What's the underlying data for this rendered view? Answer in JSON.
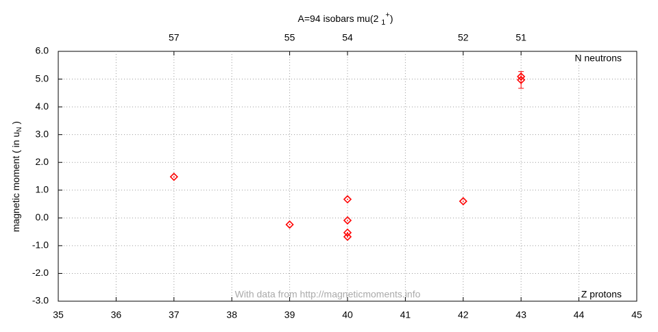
{
  "chart_data": {
    "type": "scatter",
    "title_parts": [
      "A=94 isobars mu(2 ",
      "1",
      "+",
      ")"
    ],
    "y_label_parts": [
      "magnetic moment ( in u",
      "N",
      " )"
    ],
    "annotations": [
      "N neutrons",
      "Z protons",
      "With data from http://magneticmoments.info"
    ],
    "top_ticks": {
      "x": [
        37,
        39,
        40,
        42,
        43
      ],
      "labels": [
        57,
        55,
        54,
        52,
        51
      ]
    },
    "xlim": [
      35,
      45
    ],
    "xticks": [
      35,
      36,
      37,
      38,
      39,
      40,
      41,
      42,
      43,
      44,
      45
    ],
    "ylim": [
      -3,
      6
    ],
    "yticks": [
      {
        "value": -3,
        "label": "-3.0"
      },
      {
        "value": -2,
        "label": "-2.0"
      },
      {
        "value": -1,
        "label": "-1.0"
      },
      {
        "value": 0,
        "label": "0.0"
      },
      {
        "value": 1,
        "label": "1.0"
      },
      {
        "value": 2,
        "label": "2.0"
      },
      {
        "value": 3,
        "label": "3.0"
      },
      {
        "value": 4,
        "label": "4.0"
      },
      {
        "value": 5,
        "label": "5.0"
      },
      {
        "value": 6,
        "label": "6.0"
      }
    ],
    "grid": true,
    "series": [
      {
        "color": "#ff0000",
        "x": [
          37,
          39,
          40,
          40,
          40,
          40,
          42,
          43,
          43
        ],
        "values": [
          1.48,
          -0.24,
          0.67,
          -0.09,
          -0.53,
          -0.68,
          0.6,
          5.09,
          4.97
        ],
        "errors": [
          null,
          null,
          null,
          null,
          null,
          null,
          null,
          null,
          0.3
        ]
      }
    ]
  }
}
